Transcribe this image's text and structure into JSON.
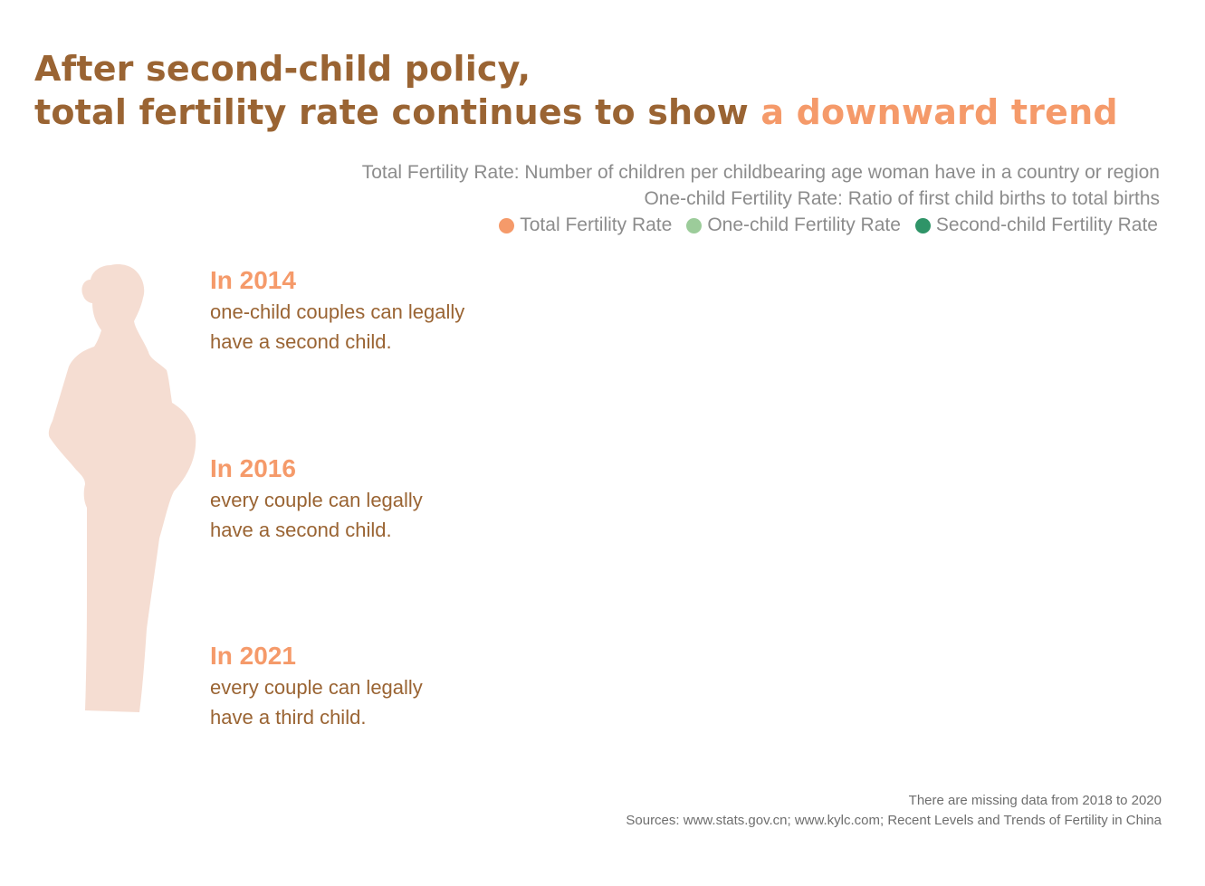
{
  "title": {
    "line1": "After second-child policy,",
    "line2_prefix": "total fertility rate continues to show ",
    "line2_highlight": "a downward trend"
  },
  "colors": {
    "title": "#9a6433",
    "highlight": "#f59a6a",
    "note_text": "#8c8c8c",
    "policy_year": "#f59a6a",
    "policy_text": "#9a6433",
    "silhouette": "#f5ddd2",
    "total_fertility": "#f59a6a",
    "one_child": "#9ccc9a",
    "second_child": "#2f9468"
  },
  "definitions": {
    "total": "Total Fertility Rate: Number of children per childbearing age woman have in a country or region",
    "one_child": "One-child Fertility Rate: Ratio of first child births to total births"
  },
  "chart_data": {
    "type": "line",
    "legend_position": "top-right",
    "series": [
      {
        "name": "Total Fertility Rate",
        "color": "#f59a6a"
      },
      {
        "name": "One-child Fertility Rate",
        "color": "#9ccc9a"
      },
      {
        "name": "Second-child Fertility Rate",
        "color": "#2f9468"
      }
    ]
  },
  "policies": [
    {
      "year": "In 2014",
      "line1": "one-child couples can legally",
      "line2": "have a second child."
    },
    {
      "year": "In 2016",
      "line1": "every couple can legally",
      "line2": "have a second child."
    },
    {
      "year": "In 2021",
      "line1": "every couple can legally",
      "line2": "have a third child."
    }
  ],
  "footnote": {
    "missing": "There are missing data from 2018 to 2020",
    "sources": "Sources: www.stats.gov.cn; www.kylc.com; Recent Levels and Trends of Fertility in China"
  }
}
